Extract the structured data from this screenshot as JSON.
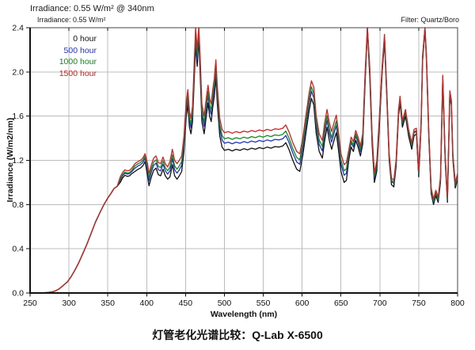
{
  "header": {
    "annotation_line1": "Irradiance: 0.55 W/m² @ 340nm",
    "annotation_line2": "Irradiance: 0.55 W/m²",
    "filter_note": "Filter: Quartz/Boro"
  },
  "legend": {
    "items": [
      {
        "label": "0 hour",
        "color": "#111111"
      },
      {
        "label": "500 hour",
        "color": "#2233bb"
      },
      {
        "label": "1000 hour",
        "color": "#118a22"
      },
      {
        "label": "1500 hour",
        "color": "#cc2222"
      }
    ]
  },
  "axes": {
    "x_label": "Wavelength (nm)",
    "y_label": "Irradiance (W/m2/nm)",
    "x_ticks": [
      250,
      300,
      350,
      400,
      450,
      500,
      550,
      600,
      650,
      700,
      750,
      800
    ],
    "y_ticks": [
      "0.0",
      "0.4",
      "0.8",
      "1.2",
      "1.6",
      "2.0",
      "2.4"
    ]
  },
  "caption": "灯管老化光谱比较：Q-Lab X-6500",
  "chart_data": {
    "type": "line",
    "title": "灯管老化光谱比较：Q-Lab X-6500",
    "xlabel": "Wavelength (nm)",
    "ylabel": "Irradiance (W/m2/nm)",
    "xlim": [
      250,
      800
    ],
    "ylim": [
      0,
      2.4
    ],
    "grid": true,
    "legend_position": "top-left",
    "grid_color": "#bcbcbc",
    "frame_color": "#444444",
    "axis_color": "#111111",
    "x": [
      250,
      262,
      272,
      278,
      283,
      288,
      293,
      298,
      303,
      308,
      313,
      318,
      323,
      328,
      334,
      340,
      345,
      350,
      354,
      358,
      362,
      366,
      369,
      372,
      375,
      378,
      381,
      385,
      389,
      392,
      395,
      398,
      401,
      403,
      406,
      409,
      412,
      415,
      418,
      421,
      424,
      427,
      430,
      433,
      436,
      439,
      442,
      445,
      448,
      451,
      453,
      455,
      457,
      459,
      461,
      463,
      465,
      467,
      469,
      471,
      474,
      477,
      479,
      481,
      483,
      485,
      487,
      489,
      491,
      494,
      497,
      500,
      505,
      510,
      515,
      520,
      525,
      530,
      535,
      540,
      545,
      550,
      555,
      560,
      565,
      570,
      575,
      579,
      583,
      588,
      593,
      597,
      601,
      605,
      609,
      612,
      615,
      618,
      622,
      626,
      629,
      632,
      635,
      638,
      641,
      644,
      647,
      650,
      654,
      657,
      660,
      663,
      666,
      669,
      672,
      675,
      678,
      681,
      684,
      687,
      690,
      693,
      696,
      699,
      703,
      706,
      709,
      712,
      715,
      718,
      721,
      724,
      726,
      729,
      733,
      737,
      741,
      744,
      747,
      750,
      753,
      755,
      758,
      760,
      763,
      766,
      769,
      772,
      775,
      778,
      781,
      784,
      787,
      790,
      792,
      794,
      797,
      800
    ],
    "series": [
      {
        "name": "0 hour",
        "color": "#111111",
        "values": [
          0,
          0,
          0.004,
          0.01,
          0.02,
          0.04,
          0.07,
          0.1,
          0.15,
          0.21,
          0.28,
          0.36,
          0.44,
          0.53,
          0.64,
          0.73,
          0.8,
          0.86,
          0.9,
          0.945,
          0.965,
          1,
          1.04,
          1.065,
          1.055,
          1.06,
          1.08,
          1.1,
          1.12,
          1.13,
          1.15,
          1.19,
          1.06,
          0.97,
          1.05,
          1.11,
          1.13,
          1.07,
          1.06,
          1.12,
          1.06,
          1.03,
          1.05,
          1.16,
          1.06,
          1.03,
          1.06,
          1.1,
          1.28,
          1.6,
          1.7,
          1.5,
          1.44,
          1.55,
          1.9,
          2.24,
          2.05,
          2.3,
          1.95,
          1.55,
          1.44,
          1.62,
          1.72,
          1.6,
          1.55,
          1.68,
          1.78,
          1.95,
          1.7,
          1.42,
          1.32,
          1.29,
          1.3,
          1.285,
          1.3,
          1.29,
          1.305,
          1.295,
          1.31,
          1.3,
          1.315,
          1.305,
          1.32,
          1.31,
          1.325,
          1.32,
          1.33,
          1.36,
          1.3,
          1.2,
          1.12,
          1.1,
          1.25,
          1.45,
          1.65,
          1.76,
          1.7,
          1.45,
          1.28,
          1.22,
          1.38,
          1.5,
          1.38,
          1.3,
          1.38,
          1.45,
          1.28,
          1.1,
          1,
          1.02,
          1.2,
          1.32,
          1.28,
          1.38,
          1.32,
          1.24,
          1.35,
          1.9,
          2.38,
          1.95,
          1.35,
          1,
          1.1,
          1.45,
          2,
          2.28,
          1.75,
          1.2,
          0.98,
          0.96,
          1.15,
          1.6,
          1.72,
          1.5,
          1.6,
          1.42,
          1.3,
          1.42,
          1.44,
          1.05,
          1.5,
          2.1,
          2.38,
          2.1,
          1.4,
          0.9,
          0.8,
          0.88,
          0.82,
          1,
          1.92,
          1.2,
          0.82,
          1.78,
          1.7,
          1.2,
          0.95,
          1.03
        ]
      },
      {
        "name": "500 hour",
        "color": "#2233bb",
        "values": [
          0,
          0,
          0.004,
          0.01,
          0.02,
          0.04,
          0.07,
          0.1,
          0.15,
          0.21,
          0.28,
          0.36,
          0.44,
          0.53,
          0.64,
          0.73,
          0.8,
          0.86,
          0.9,
          0.945,
          0.965,
          1.02,
          1.06,
          1.085,
          1.075,
          1.08,
          1.1,
          1.13,
          1.15,
          1.16,
          1.18,
          1.22,
          1.105,
          1.015,
          1.095,
          1.155,
          1.175,
          1.115,
          1.105,
          1.165,
          1.105,
          1.075,
          1.105,
          1.215,
          1.115,
          1.085,
          1.115,
          1.155,
          1.335,
          1.655,
          1.755,
          1.555,
          1.495,
          1.605,
          1.965,
          2.305,
          2.115,
          2.365,
          2.015,
          1.615,
          1.505,
          1.685,
          1.785,
          1.665,
          1.615,
          1.745,
          1.845,
          2.015,
          1.765,
          1.485,
          1.385,
          1.355,
          1.365,
          1.35,
          1.365,
          1.355,
          1.37,
          1.36,
          1.375,
          1.365,
          1.38,
          1.37,
          1.385,
          1.375,
          1.39,
          1.385,
          1.395,
          1.425,
          1.365,
          1.265,
          1.185,
          1.165,
          1.315,
          1.515,
          1.715,
          1.825,
          1.765,
          1.515,
          1.345,
          1.285,
          1.445,
          1.565,
          1.445,
          1.365,
          1.445,
          1.515,
          1.345,
          1.165,
          1.065,
          1.085,
          1.24,
          1.36,
          1.32,
          1.42,
          1.36,
          1.28,
          1.39,
          1.94,
          2.4,
          1.99,
          1.39,
          1.04,
          1.14,
          1.49,
          2.03,
          2.31,
          1.78,
          1.23,
          1.01,
          0.99,
          1.18,
          1.63,
          1.75,
          1.53,
          1.63,
          1.45,
          1.33,
          1.45,
          1.46,
          1.07,
          1.52,
          2.12,
          2.4,
          2.12,
          1.42,
          0.92,
          0.82,
          0.9,
          0.84,
          1.02,
          1.94,
          1.22,
          0.84,
          1.8,
          1.72,
          1.22,
          0.97,
          1.05
        ]
      },
      {
        "name": "1000 hour",
        "color": "#118a22",
        "values": [
          0,
          0,
          0.004,
          0.01,
          0.02,
          0.04,
          0.07,
          0.1,
          0.15,
          0.21,
          0.28,
          0.36,
          0.44,
          0.53,
          0.64,
          0.73,
          0.8,
          0.86,
          0.9,
          0.945,
          0.965,
          1.03,
          1.07,
          1.095,
          1.085,
          1.09,
          1.11,
          1.15,
          1.17,
          1.18,
          1.2,
          1.24,
          1.135,
          1.045,
          1.125,
          1.185,
          1.205,
          1.145,
          1.135,
          1.195,
          1.135,
          1.105,
          1.14,
          1.25,
          1.15,
          1.12,
          1.15,
          1.19,
          1.37,
          1.69,
          1.79,
          1.59,
          1.53,
          1.64,
          2.005,
          2.345,
          2.155,
          2.4,
          2.055,
          1.655,
          1.545,
          1.725,
          1.825,
          1.705,
          1.655,
          1.785,
          1.885,
          2.055,
          1.805,
          1.525,
          1.425,
          1.395,
          1.405,
          1.39,
          1.405,
          1.395,
          1.41,
          1.4,
          1.415,
          1.405,
          1.42,
          1.41,
          1.425,
          1.415,
          1.43,
          1.425,
          1.435,
          1.465,
          1.405,
          1.305,
          1.225,
          1.205,
          1.355,
          1.555,
          1.755,
          1.865,
          1.805,
          1.555,
          1.385,
          1.325,
          1.485,
          1.605,
          1.485,
          1.405,
          1.485,
          1.555,
          1.385,
          1.205,
          1.105,
          1.125,
          1.26,
          1.38,
          1.34,
          1.44,
          1.38,
          1.3,
          1.41,
          1.96,
          2.4,
          2.01,
          1.41,
          1.06,
          1.16,
          1.51,
          2.04,
          2.32,
          1.79,
          1.24,
          1.02,
          1,
          1.19,
          1.64,
          1.76,
          1.54,
          1.64,
          1.46,
          1.34,
          1.46,
          1.47,
          1.08,
          1.53,
          2.13,
          2.4,
          2.13,
          1.43,
          0.93,
          0.83,
          0.91,
          0.85,
          1.03,
          1.95,
          1.23,
          0.85,
          1.81,
          1.73,
          1.23,
          0.98,
          1.06
        ]
      },
      {
        "name": "1500 hour",
        "color": "#cc2222",
        "values": [
          0,
          0,
          0.004,
          0.01,
          0.02,
          0.04,
          0.07,
          0.1,
          0.15,
          0.21,
          0.28,
          0.36,
          0.44,
          0.53,
          0.64,
          0.73,
          0.8,
          0.86,
          0.9,
          0.945,
          0.965,
          1.05,
          1.09,
          1.115,
          1.105,
          1.11,
          1.13,
          1.17,
          1.19,
          1.2,
          1.22,
          1.26,
          1.17,
          1.08,
          1.16,
          1.22,
          1.24,
          1.18,
          1.17,
          1.23,
          1.17,
          1.14,
          1.19,
          1.3,
          1.2,
          1.17,
          1.2,
          1.24,
          1.42,
          1.74,
          1.84,
          1.64,
          1.58,
          1.69,
          2.06,
          2.4,
          2.21,
          2.4,
          2.11,
          1.71,
          1.6,
          1.78,
          1.88,
          1.76,
          1.71,
          1.84,
          1.94,
          2.11,
          1.86,
          1.58,
          1.48,
          1.45,
          1.46,
          1.445,
          1.46,
          1.45,
          1.465,
          1.455,
          1.47,
          1.46,
          1.475,
          1.465,
          1.48,
          1.47,
          1.485,
          1.48,
          1.49,
          1.52,
          1.46,
          1.36,
          1.28,
          1.26,
          1.41,
          1.61,
          1.81,
          1.92,
          1.86,
          1.61,
          1.44,
          1.38,
          1.54,
          1.66,
          1.54,
          1.46,
          1.54,
          1.61,
          1.44,
          1.26,
          1.16,
          1.18,
          1.29,
          1.41,
          1.37,
          1.47,
          1.41,
          1.33,
          1.44,
          1.99,
          2.4,
          2.04,
          1.44,
          1.09,
          1.19,
          1.54,
          2.06,
          2.34,
          1.81,
          1.26,
          1.04,
          1.02,
          1.21,
          1.66,
          1.78,
          1.56,
          1.66,
          1.48,
          1.36,
          1.48,
          1.49,
          1.1,
          1.55,
          2.15,
          2.4,
          2.15,
          1.45,
          0.95,
          0.85,
          0.93,
          0.87,
          1.05,
          1.97,
          1.25,
          0.87,
          1.83,
          1.75,
          1.25,
          1,
          1.08
        ]
      }
    ]
  }
}
